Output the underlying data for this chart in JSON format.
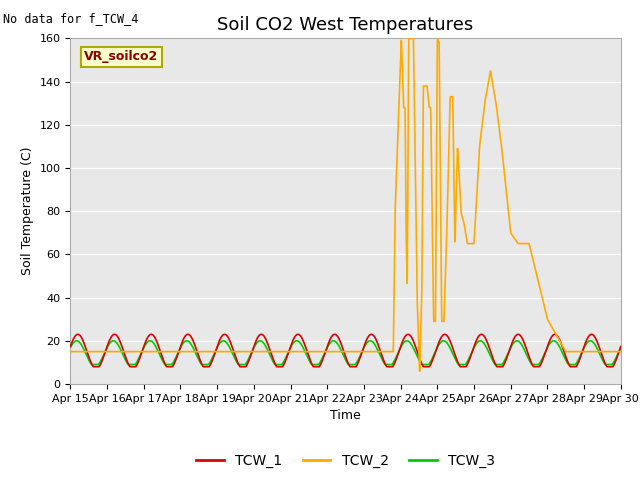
{
  "title": "Soil CO2 West Temperatures",
  "no_data_text": "No data for f_TCW_4",
  "ylabel": "Soil Temperature (C)",
  "xlabel": "Time",
  "ylim": [
    0,
    160
  ],
  "xlim": [
    0,
    15
  ],
  "xtick_labels": [
    "Apr 15",
    "Apr 16",
    "Apr 17",
    "Apr 18",
    "Apr 19",
    "Apr 20",
    "Apr 21",
    "Apr 22",
    "Apr 23",
    "Apr 24",
    "Apr 25",
    "Apr 26",
    "Apr 27",
    "Apr 28",
    "Apr 29",
    "Apr 30"
  ],
  "ytick_values": [
    0,
    20,
    40,
    60,
    80,
    100,
    120,
    140,
    160
  ],
  "bg_color": "#e8e8e8",
  "legend_box_text": "VR_soilco2",
  "legend_box_facecolor": "#ffffcc",
  "legend_box_edgecolor": "#aaaa00",
  "tcw1_color": "#dd0000",
  "tcw2_color": "#ffaa00",
  "tcw3_color": "#00cc00",
  "title_fontsize": 13,
  "axis_label_fontsize": 9,
  "tick_fontsize": 8,
  "linewidth": 1.2
}
